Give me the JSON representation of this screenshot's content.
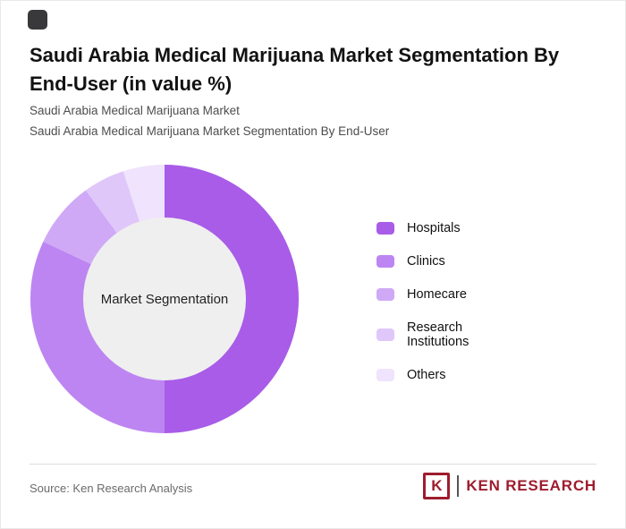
{
  "header": {
    "title": "Saudi Arabia Medical Marijuana Market Segmentation By End-User (in value %)",
    "subtitles": [
      "Saudi Arabia Medical Marijuana Market",
      "Saudi Arabia Medical Marijuana Market Segmentation By End-User"
    ]
  },
  "chart_data": {
    "type": "pie",
    "donut": true,
    "title": "Saudi Arabia Medical Marijuana Market Segmentation By End-User (in value %)",
    "center_label": "Market Segmentation",
    "categories": [
      "Hospitals",
      "Clinics",
      "Homecare",
      "Research Institutions",
      "Others"
    ],
    "values": [
      50,
      32,
      8,
      5,
      5
    ],
    "unit": "value %",
    "colors": [
      "#a85ce8",
      "#bd85f1",
      "#cfa9f6",
      "#e0c7fa",
      "#efe3fd"
    ],
    "center_color": "#efefef",
    "legend_position": "right",
    "start_angle_deg": 0,
    "direction": "clockwise"
  },
  "footer": {
    "source": "Source: Ken Research Analysis",
    "logo_letter": "K",
    "brand": "KEN RESEARCH"
  }
}
